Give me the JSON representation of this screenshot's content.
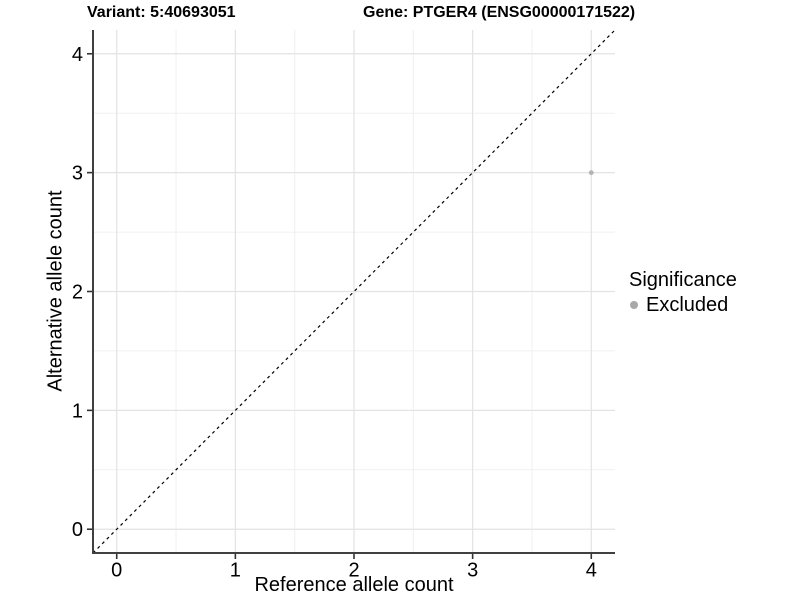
{
  "chart_data": {
    "type": "scatter",
    "title_left": "Variant: 5:40693051",
    "title_right": "Gene: PTGER4 (ENSG00000171522)",
    "xlabel": "Reference allele count",
    "ylabel": "Alternative allele count",
    "xlim": [
      -0.2,
      4.2
    ],
    "ylim": [
      -0.2,
      4.2
    ],
    "xticks": [
      0,
      1,
      2,
      3,
      4
    ],
    "yticks": [
      0,
      1,
      2,
      3,
      4
    ],
    "minor_grid_step": 0.5,
    "grid": "on",
    "identity_line": {
      "slope": 1,
      "intercept": 0,
      "style": "dashed",
      "color": "#000000"
    },
    "series": [
      {
        "name": "Excluded",
        "color": "#b3b3b3",
        "points": [
          {
            "x": 4,
            "y": 3
          }
        ]
      }
    ],
    "legend": {
      "title": "Significance",
      "position": "right",
      "items": [
        {
          "label": "Excluded",
          "color": "#a9a9a9"
        }
      ]
    },
    "colors": {
      "background": "#ffffff",
      "grid_major": "#e3e3e3",
      "grid_minor": "#f0f0f0",
      "axis_line": "#404040",
      "tick_mark": "#333333",
      "text": "#000000"
    }
  }
}
